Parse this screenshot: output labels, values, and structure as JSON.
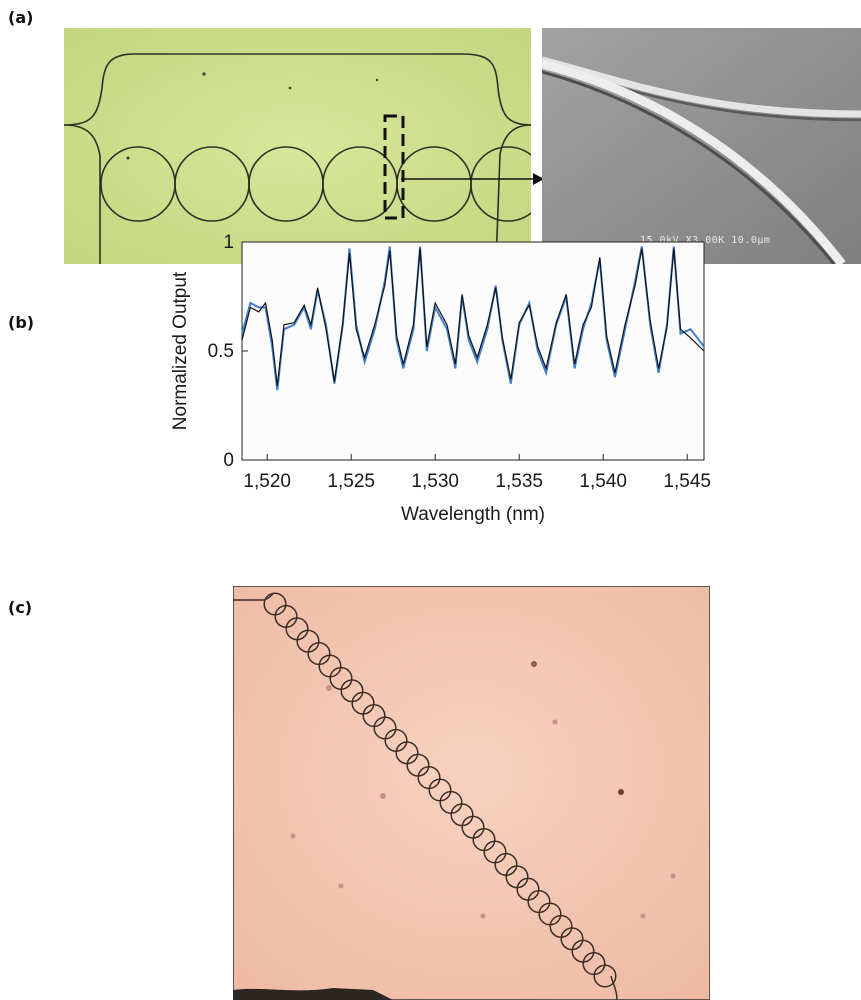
{
  "figure": {
    "panel_a_label": "(a)",
    "panel_b_label": "(b)",
    "panel_c_label": "(c)",
    "sem_scale_text": "15.0kV X3.00K 10.0µm"
  },
  "chart_data": {
    "type": "line",
    "title": "",
    "xlabel": "Wavelength (nm)",
    "ylabel": "Normalized Output",
    "xlim": [
      1518.5,
      1546
    ],
    "ylim": [
      0,
      1
    ],
    "xticks": [
      1520,
      1525,
      1530,
      1535,
      1540,
      1545
    ],
    "xtick_labels": [
      "1,520",
      "1,525",
      "1,530",
      "1,535",
      "1,540",
      "1,545"
    ],
    "yticks": [
      0,
      0.5,
      1
    ],
    "ytick_labels": [
      "0",
      "0.5",
      "1"
    ],
    "grid": false,
    "series": [
      {
        "color": "#3f7fcf",
        "x": [
          1518.5,
          1519.0,
          1519.5,
          1519.9,
          1520.3,
          1520.6,
          1521.0,
          1521.6,
          1522.2,
          1522.6,
          1523.0,
          1523.5,
          1524.0,
          1524.5,
          1524.9,
          1525.3,
          1525.8,
          1526.4,
          1527.0,
          1527.3,
          1527.7,
          1528.1,
          1528.7,
          1529.1,
          1529.5,
          1530.0,
          1530.7,
          1531.2,
          1531.6,
          1532.0,
          1532.5,
          1533.1,
          1533.6,
          1534.0,
          1534.5,
          1535.0,
          1535.6,
          1536.1,
          1536.6,
          1537.2,
          1537.8,
          1538.3,
          1538.8,
          1539.3,
          1539.8,
          1540.2,
          1540.7,
          1541.3,
          1541.9,
          1542.3,
          1542.8,
          1543.3,
          1543.8,
          1544.2,
          1544.6,
          1545.2,
          1546.0
        ],
        "y": [
          0.58,
          0.72,
          0.7,
          0.7,
          0.52,
          0.32,
          0.6,
          0.62,
          0.7,
          0.6,
          0.78,
          0.62,
          0.35,
          0.62,
          0.97,
          0.62,
          0.45,
          0.6,
          0.82,
          0.98,
          0.55,
          0.42,
          0.6,
          0.98,
          0.5,
          0.7,
          0.6,
          0.42,
          0.75,
          0.55,
          0.45,
          0.6,
          0.8,
          0.55,
          0.35,
          0.62,
          0.72,
          0.5,
          0.4,
          0.62,
          0.75,
          0.42,
          0.6,
          0.72,
          0.92,
          0.55,
          0.38,
          0.6,
          0.82,
          0.98,
          0.62,
          0.4,
          0.62,
          0.98,
          0.58,
          0.6,
          0.52
        ]
      },
      {
        "color": "#111111",
        "x": [
          1518.5,
          1519.0,
          1519.5,
          1519.9,
          1520.3,
          1520.6,
          1521.0,
          1521.6,
          1522.2,
          1522.6,
          1523.0,
          1523.5,
          1524.0,
          1524.5,
          1524.9,
          1525.3,
          1525.8,
          1526.4,
          1527.0,
          1527.3,
          1527.7,
          1528.1,
          1528.7,
          1529.1,
          1529.5,
          1530.0,
          1530.7,
          1531.2,
          1531.6,
          1532.0,
          1532.5,
          1533.1,
          1533.6,
          1534.0,
          1534.5,
          1535.0,
          1535.6,
          1536.1,
          1536.6,
          1537.2,
          1537.8,
          1538.3,
          1538.8,
          1539.3,
          1539.8,
          1540.2,
          1540.7,
          1541.3,
          1541.9,
          1542.3,
          1542.8,
          1543.3,
          1543.8,
          1544.2,
          1544.6,
          1545.2,
          1546.0
        ],
        "y": [
          0.55,
          0.7,
          0.68,
          0.72,
          0.55,
          0.34,
          0.62,
          0.63,
          0.71,
          0.62,
          0.79,
          0.6,
          0.36,
          0.63,
          0.95,
          0.6,
          0.47,
          0.62,
          0.8,
          0.96,
          0.57,
          0.44,
          0.62,
          0.97,
          0.52,
          0.72,
          0.62,
          0.44,
          0.76,
          0.57,
          0.47,
          0.62,
          0.79,
          0.56,
          0.37,
          0.63,
          0.71,
          0.52,
          0.42,
          0.63,
          0.76,
          0.44,
          0.62,
          0.7,
          0.93,
          0.57,
          0.4,
          0.62,
          0.8,
          0.97,
          0.64,
          0.42,
          0.61,
          0.97,
          0.6,
          0.56,
          0.5
        ]
      }
    ]
  }
}
